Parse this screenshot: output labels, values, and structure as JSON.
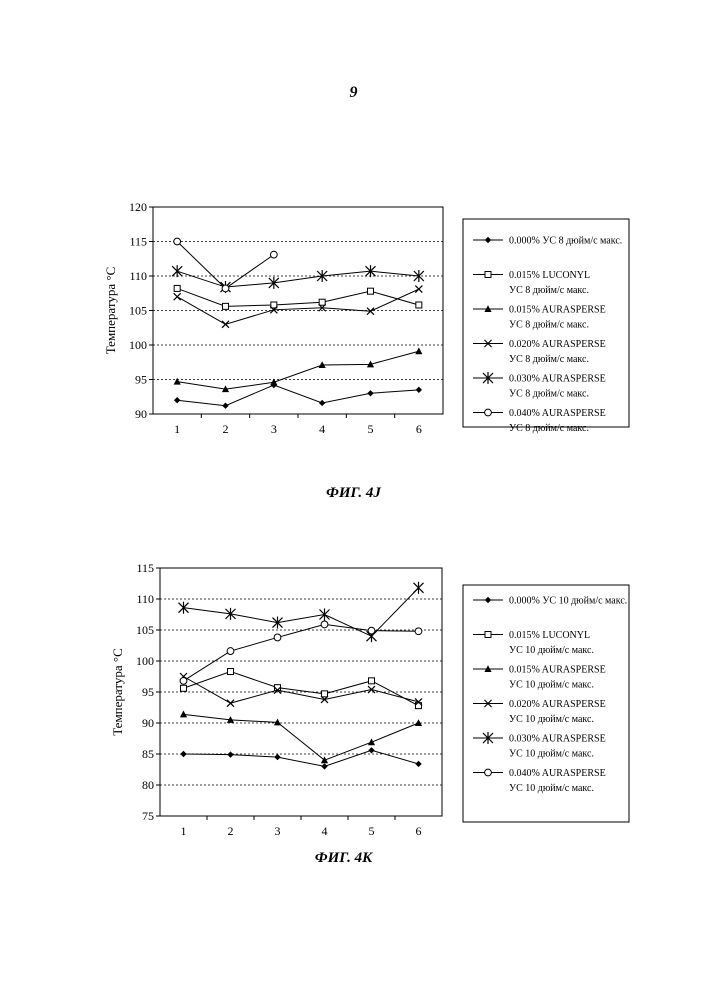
{
  "page": {
    "number": "9",
    "figures": [
      {
        "caption": "ФИГ. 4J"
      },
      {
        "caption": "ФИГ. 4K"
      }
    ]
  },
  "chart_data": [
    {
      "type": "line",
      "title": "",
      "ylabel": "Температура °C",
      "xlabel": "",
      "x": [
        1,
        2,
        3,
        4,
        5,
        6
      ],
      "ylim": [
        90,
        120
      ],
      "yticks": [
        90,
        95,
        100,
        105,
        110,
        115,
        120
      ],
      "grid": "horizontal dotted",
      "legend_position": "right",
      "series": [
        {
          "name": "0.000% УС 8 дюйм/с макс.",
          "marker": "diamond",
          "values": [
            92.0,
            91.2,
            94.2,
            91.6,
            93.0,
            93.5
          ]
        },
        {
          "name": "0.015% LUCONYL УС 8 дюйм/с макс.",
          "marker": "square",
          "values": [
            108.2,
            105.6,
            105.8,
            106.2,
            107.8,
            105.8
          ]
        },
        {
          "name": "0.015% AURASPERSE УС 8 дюйм/с макс.",
          "marker": "triangle",
          "values": [
            94.7,
            93.6,
            94.6,
            97.1,
            97.2,
            99.1
          ]
        },
        {
          "name": "0.020% AURASPERSE УС 8 дюйм/с макс.",
          "marker": "x",
          "values": [
            107.0,
            103.0,
            105.1,
            105.4,
            104.9,
            108.1
          ]
        },
        {
          "name": "0.030% AURASPERSE УС 8 дюйм/с макс.",
          "marker": "asterisk",
          "values": [
            110.7,
            108.4,
            109.0,
            110.0,
            110.7,
            110.0
          ]
        },
        {
          "name": "0.040% AURASPERSE УС 8 дюйм/с макс.",
          "marker": "circle",
          "values": [
            115.0,
            108.2,
            113.1,
            null,
            null,
            null
          ]
        }
      ]
    },
    {
      "type": "line",
      "title": "",
      "ylabel": "Температура °C",
      "xlabel": "",
      "x": [
        1,
        2,
        3,
        4,
        5,
        6
      ],
      "ylim": [
        75,
        115
      ],
      "yticks": [
        75,
        80,
        85,
        90,
        95,
        100,
        105,
        110,
        115
      ],
      "grid": "horizontal dotted",
      "legend_position": "right",
      "series": [
        {
          "name": "0.000% УС 10 дюйм/с макс.",
          "marker": "diamond",
          "values": [
            85.0,
            84.9,
            84.5,
            83.0,
            85.6,
            83.4
          ]
        },
        {
          "name": "0.015% LUCONYL УС 10 дюйм/с макс.",
          "marker": "square",
          "values": [
            95.6,
            98.3,
            95.7,
            94.7,
            96.8,
            92.8
          ]
        },
        {
          "name": "0.015% AURASPERSE УС 10 дюйм/с макс.",
          "marker": "triangle",
          "values": [
            91.4,
            90.5,
            90.1,
            84.0,
            86.9,
            90.0
          ]
        },
        {
          "name": "0.020% AURASPERSE УС 10 дюйм/с макс.",
          "marker": "x",
          "values": [
            97.5,
            93.2,
            95.3,
            93.8,
            95.4,
            93.4
          ]
        },
        {
          "name": "0.030% AURASPERSE УС 10 дюйм/с макс.",
          "marker": "asterisk",
          "values": [
            108.6,
            107.6,
            106.2,
            107.5,
            104.0,
            111.8
          ]
        },
        {
          "name": "0.040% AURASPERSE УС 10 дюйм/с макс.",
          "marker": "circle",
          "values": [
            96.8,
            101.6,
            103.8,
            105.9,
            104.9,
            104.8
          ]
        }
      ]
    }
  ],
  "legends": [
    {
      "entries": [
        {
          "lines": [
            "0.000% УС 8 дюйм/с макс."
          ]
        },
        {
          "lines": [
            "0.015% LUCONYL",
            "УС 8 дюйм/с макс."
          ]
        },
        {
          "lines": [
            "0.015% AURASPERSE",
            "УС 8 дюйм/с макс."
          ]
        },
        {
          "lines": [
            "0.020% AURASPERSE",
            "УС 8 дюйм/с макс."
          ]
        },
        {
          "lines": [
            "0.030% AURASPERSE",
            "УС 8 дюйм/с макс."
          ]
        },
        {
          "lines": [
            "0.040% AURASPERSE",
            "УС 8 дюйм/с макс."
          ]
        }
      ]
    },
    {
      "entries": [
        {
          "lines": [
            "0.000% УС 10 дюйм/с макс."
          ]
        },
        {
          "lines": [
            "0.015% LUCONYL",
            "УС 10 дюйм/с макс."
          ]
        },
        {
          "lines": [
            "0.015% AURASPERSE",
            "УС 10 дюйм/с макс."
          ]
        },
        {
          "lines": [
            "0.020% AURASPERSE",
            "УС 10 дюйм/с макс."
          ]
        },
        {
          "lines": [
            "0.030% AURASPERSE",
            "УС 10 дюйм/с макс."
          ]
        },
        {
          "lines": [
            "0.040% AURASPERSE",
            "УС 10 дюйм/с макс."
          ]
        }
      ]
    }
  ]
}
